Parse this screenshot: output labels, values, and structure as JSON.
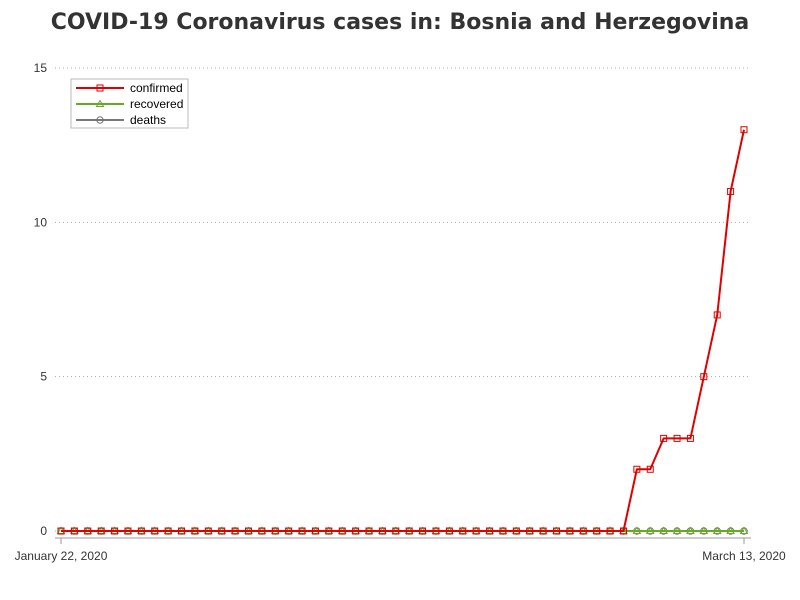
{
  "chart_data": {
    "type": "line",
    "title": "COVID-19 Coronavirus cases in: Bosnia and Herzegovina",
    "x_start_label": "January 22, 2020",
    "x_end_label": "March 13, 2020",
    "y_ticks": [
      0,
      5,
      10,
      15
    ],
    "ylim": [
      0,
      15
    ],
    "grid": "horizontal dotted",
    "legend_position": "top-left",
    "series": [
      {
        "name": "confirmed",
        "color": "#e00000",
        "marker": "square",
        "values": [
          0,
          0,
          0,
          0,
          0,
          0,
          0,
          0,
          0,
          0,
          0,
          0,
          0,
          0,
          0,
          0,
          0,
          0,
          0,
          0,
          0,
          0,
          0,
          0,
          0,
          0,
          0,
          0,
          0,
          0,
          0,
          0,
          0,
          0,
          0,
          0,
          0,
          0,
          0,
          0,
          0,
          0,
          0,
          2,
          2,
          3,
          3,
          3,
          5,
          7,
          11,
          13
        ]
      },
      {
        "name": "recovered",
        "color": "#66aa22",
        "marker": "triangle",
        "values": [
          0,
          0,
          0,
          0,
          0,
          0,
          0,
          0,
          0,
          0,
          0,
          0,
          0,
          0,
          0,
          0,
          0,
          0,
          0,
          0,
          0,
          0,
          0,
          0,
          0,
          0,
          0,
          0,
          0,
          0,
          0,
          0,
          0,
          0,
          0,
          0,
          0,
          0,
          0,
          0,
          0,
          0,
          0,
          0,
          0,
          0,
          0,
          0,
          0,
          0,
          0,
          0
        ]
      },
      {
        "name": "deaths",
        "color": "#777777",
        "marker": "circle",
        "values": [
          0,
          0,
          0,
          0,
          0,
          0,
          0,
          0,
          0,
          0,
          0,
          0,
          0,
          0,
          0,
          0,
          0,
          0,
          0,
          0,
          0,
          0,
          0,
          0,
          0,
          0,
          0,
          0,
          0,
          0,
          0,
          0,
          0,
          0,
          0,
          0,
          0,
          0,
          0,
          0,
          0,
          0,
          0,
          0,
          0,
          0,
          0,
          0,
          0,
          0,
          0,
          0
        ]
      }
    ]
  }
}
